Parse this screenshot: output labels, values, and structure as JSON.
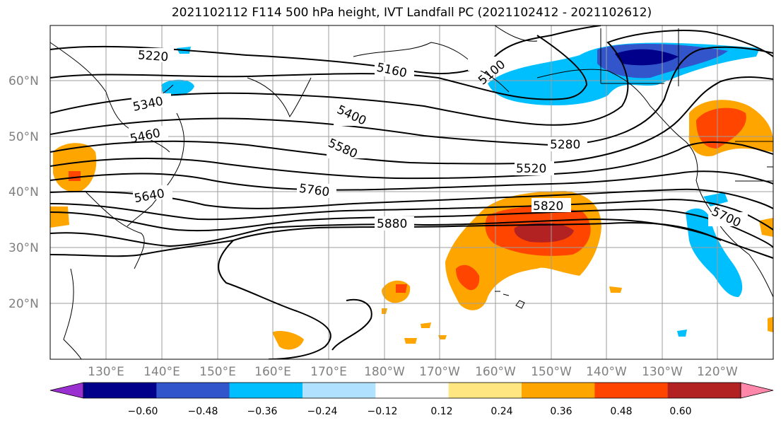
{
  "title": "2021102112 F114 500 hPa height, IVT Landfall PC (2021102412 - 2021102612)",
  "map": {
    "lon_ticks": [
      "130°E",
      "140°E",
      "150°E",
      "160°E",
      "170°E",
      "180°W",
      "170°W",
      "160°W",
      "150°W",
      "140°W",
      "130°W",
      "120°W"
    ],
    "lat_ticks": [
      "60°N",
      "50°N",
      "40°N",
      "30°N",
      "20°N"
    ],
    "contour_labels": [
      "5220",
      "5160",
      "5100",
      "5340",
      "5400",
      "5460",
      "5580",
      "5280",
      "5520",
      "5640",
      "5760",
      "5820",
      "5880",
      "5700"
    ]
  },
  "colorbar": {
    "labels": [
      "−0.60",
      "−0.48",
      "−0.36",
      "−0.24",
      "−0.12",
      "0.12",
      "0.24",
      "0.36",
      "0.48",
      "0.60"
    ],
    "colors": [
      "#9b30d0",
      "#00008b",
      "#3355cc",
      "#00bfff",
      "#b0e2ff",
      "#ffffff",
      "#ffe680",
      "#ffa500",
      "#ff4500",
      "#b22222",
      "#ff88aa"
    ]
  }
}
